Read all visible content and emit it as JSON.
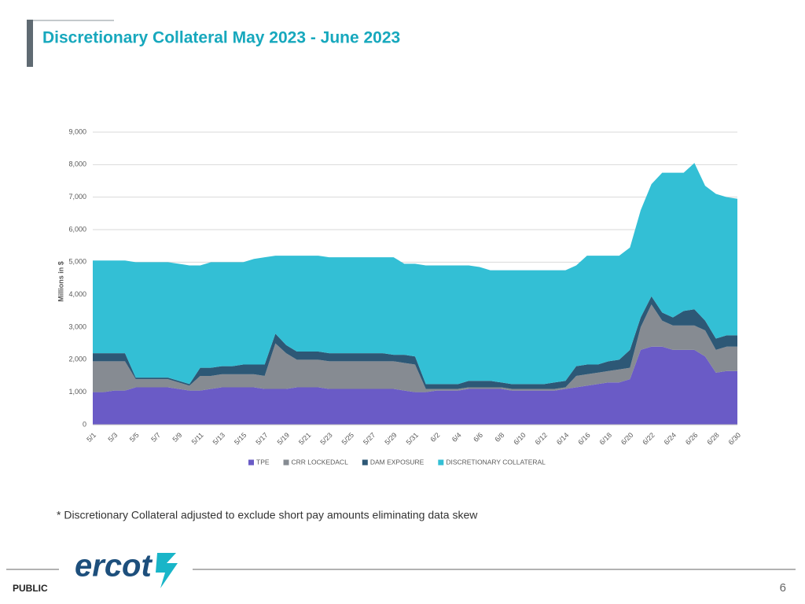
{
  "slide": {
    "title": "Discretionary Collateral May 2023 - June 2023",
    "footnote": "* Discretionary Collateral adjusted to exclude short pay amounts eliminating data skew",
    "logo": "ercot",
    "footer": "PUBLIC",
    "page_number": 6
  },
  "chart_data": {
    "type": "stacked_area",
    "y_label": "Millions in $",
    "legend": "bottom",
    "grid": true,
    "categories": [
      "5/1",
      null,
      "5/3",
      null,
      "5/5",
      null,
      "5/7",
      null,
      "5/9",
      null,
      "5/11",
      null,
      "5/13",
      null,
      "5/15",
      null,
      "5/17",
      null,
      "5/19",
      null,
      "5/21",
      null,
      "5/23",
      null,
      "5/25",
      null,
      "5/27",
      null,
      "5/29",
      null,
      "5/31",
      null,
      "6/2",
      null,
      "6/4",
      null,
      "6/6",
      null,
      "6/8",
      null,
      "6/10",
      null,
      "6/12",
      null,
      "6/14",
      null,
      "6/16",
      null,
      "6/18",
      null,
      "6/20",
      null,
      "6/22",
      null,
      "6/24",
      null,
      "6/26",
      null,
      "6/28",
      null,
      "6/30"
    ],
    "ylim": [
      0,
      9000
    ],
    "yticks": [
      0,
      {
        "value": 1000,
        "label": "1,000"
      },
      {
        "value": 2000,
        "label": "2,000"
      },
      {
        "value": 3000,
        "label": "3,000"
      },
      {
        "value": 4000,
        "label": "4,000"
      },
      {
        "value": 5000,
        "label": "5,000"
      },
      {
        "value": 6000,
        "label": "6,000"
      },
      {
        "value": 7000,
        "label": "7,000"
      },
      {
        "value": 8000,
        "label": "8,000"
      },
      {
        "value": 9000,
        "label": "9,000"
      }
    ],
    "series": [
      {
        "name": "TPE",
        "color": "#6a5bc6",
        "values": [
          1000,
          1000,
          1050,
          1050,
          1150,
          1150,
          1150,
          1150,
          1100,
          1050,
          1050,
          1100,
          1150,
          1150,
          1150,
          1150,
          1100,
          1100,
          1100,
          1150,
          1150,
          1150,
          1100,
          1100,
          1100,
          1100,
          1100,
          1100,
          1100,
          1050,
          1000,
          1000,
          1050,
          1050,
          1050,
          1100,
          1100,
          1100,
          1100,
          1050,
          1050,
          1050,
          1050,
          1050,
          1100,
          1150,
          1200,
          1250,
          1300,
          1300,
          1400,
          2300,
          2400,
          2400,
          2300,
          2300,
          2300,
          2100,
          1600,
          1650,
          1650
        ]
      },
      {
        "name": "CRR LOCKEDACL",
        "color": "#868b92",
        "values": [
          950,
          950,
          900,
          900,
          250,
          250,
          250,
          250,
          200,
          150,
          450,
          400,
          400,
          400,
          400,
          400,
          400,
          1400,
          1100,
          850,
          850,
          850,
          850,
          850,
          850,
          850,
          850,
          850,
          850,
          850,
          850,
          100,
          50,
          50,
          50,
          50,
          50,
          50,
          50,
          50,
          50,
          50,
          50,
          50,
          50,
          350,
          350,
          350,
          350,
          400,
          350,
          700,
          1300,
          800,
          750,
          750,
          750,
          800,
          700,
          750,
          750
        ]
      },
      {
        "name": "DAM EXPOSURE",
        "color": "#2d5876",
        "values": [
          250,
          250,
          250,
          250,
          50,
          50,
          50,
          50,
          50,
          50,
          250,
          250,
          250,
          250,
          300,
          300,
          350,
          300,
          250,
          250,
          250,
          250,
          250,
          250,
          250,
          250,
          250,
          250,
          200,
          250,
          250,
          150,
          150,
          150,
          150,
          200,
          200,
          200,
          150,
          150,
          150,
          150,
          150,
          200,
          200,
          300,
          300,
          250,
          300,
          300,
          550,
          300,
          250,
          250,
          250,
          450,
          500,
          300,
          350,
          350,
          350
        ]
      },
      {
        "name": "DISCRETIONARY COLLATERAL",
        "color": "#33bfd5",
        "values": [
          2850,
          2850,
          2850,
          2850,
          3550,
          3550,
          3550,
          3550,
          3600,
          3650,
          3150,
          3250,
          3200,
          3200,
          3150,
          3250,
          3300,
          2400,
          2750,
          2950,
          2950,
          2950,
          2950,
          2950,
          2950,
          2950,
          2950,
          2950,
          3000,
          2800,
          2850,
          3650,
          3650,
          3650,
          3650,
          3550,
          3500,
          3400,
          3450,
          3500,
          3500,
          3500,
          3500,
          3450,
          3400,
          3100,
          3350,
          3350,
          3250,
          3200,
          3150,
          3300,
          3450,
          4300,
          4450,
          4250,
          4500,
          4150,
          4450,
          4250,
          4200
        ]
      }
    ]
  }
}
